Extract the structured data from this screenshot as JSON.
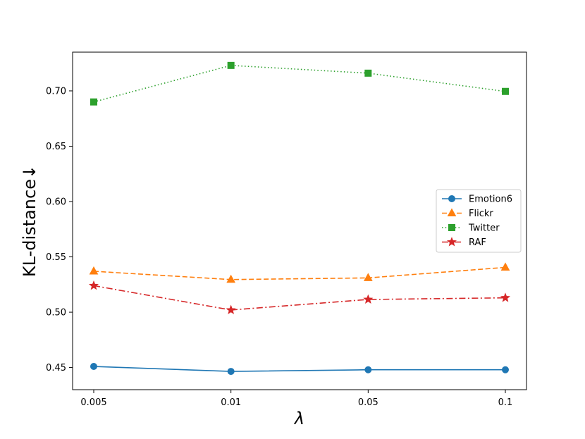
{
  "chart_data": {
    "type": "line",
    "categories": [
      "0.005",
      "0.01",
      "0.05",
      "0.1"
    ],
    "xlabel": "λ",
    "ylabel": "KL-distance↓",
    "ylim": [
      0.43,
      0.735
    ],
    "yticks": [
      "0.45",
      "0.50",
      "0.55",
      "0.60",
      "0.65",
      "0.70"
    ],
    "grid": false,
    "legend_position": "center-right",
    "series": [
      {
        "name": "Emotion6",
        "values": [
          0.451,
          0.4465,
          0.448,
          0.448
        ],
        "color": "#1f77b4",
        "marker": "circle",
        "linestyle": "solid"
      },
      {
        "name": "Flickr",
        "values": [
          0.537,
          0.5295,
          0.531,
          0.5405
        ],
        "color": "#ff7f0e",
        "marker": "triangle",
        "linestyle": "dashed"
      },
      {
        "name": "Twitter",
        "values": [
          0.69,
          0.723,
          0.716,
          0.6995
        ],
        "color": "#2ca02c",
        "marker": "square",
        "linestyle": "dotted"
      },
      {
        "name": "RAF",
        "values": [
          0.524,
          0.502,
          0.5115,
          0.513
        ],
        "color": "#d62728",
        "marker": "star",
        "linestyle": "dashdot"
      }
    ]
  }
}
